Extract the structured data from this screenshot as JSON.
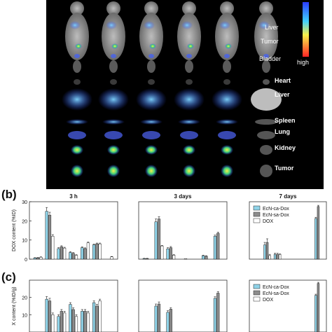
{
  "panel_labels": {
    "b": "(b)",
    "c": "(c)"
  },
  "imaging": {
    "labels": [
      "Liver",
      "Tumor",
      "Bladder"
    ],
    "colorbar": {
      "high": "high",
      "top_color": "#3344ff",
      "bottom_color": "#ff2020"
    },
    "organ_labels": [
      "Heart",
      "Liver",
      "Spleen",
      "Lung",
      "Kidney",
      "Tumor"
    ],
    "background": "#000000"
  },
  "chart_data": [
    {
      "type": "bar",
      "panel": "b",
      "title": "3 h",
      "ylabel": "DOX content (%ID)",
      "ylim": [
        0,
        30
      ],
      "yticks": [
        0,
        10,
        20,
        30
      ],
      "categories": [
        "1",
        "2",
        "3",
        "4",
        "5",
        "6",
        "7"
      ],
      "series": [
        {
          "name": "EcN-ca-Dox",
          "values": [
            0.6,
            25,
            5.5,
            3.5,
            6,
            7.5,
            0
          ],
          "errors": [
            0.2,
            2,
            0.5,
            0.4,
            0.4,
            0.4,
            0
          ]
        },
        {
          "name": "EcN-sa-Dox",
          "values": [
            0.7,
            23,
            6.5,
            3,
            5.5,
            8,
            0
          ],
          "errors": [
            0.2,
            1.5,
            0.5,
            0.4,
            0.4,
            0.4,
            0
          ]
        },
        {
          "name": "DOX",
          "values": [
            1,
            12,
            5.8,
            2,
            8.5,
            8,
            1.2
          ],
          "errors": [
            0.2,
            0.8,
            0.4,
            0.3,
            0.4,
            0.4,
            0.2
          ]
        }
      ]
    },
    {
      "type": "bar",
      "panel": "b",
      "title": "3 days",
      "ylim": [
        0,
        10
      ],
      "categories": [
        "1",
        "2",
        "3",
        "4",
        "5",
        "6",
        "7"
      ],
      "series": [
        {
          "name": "EcN-ca-Dox",
          "values": [
            0.1,
            6.5,
            1.8,
            0,
            0,
            0.6,
            4
          ],
          "errors": [
            0.05,
            0.5,
            0.2,
            0,
            0,
            0.1,
            0.2
          ]
        },
        {
          "name": "EcN-sa-Dox",
          "values": [
            0.1,
            7,
            2,
            0,
            0,
            0.5,
            4.5
          ],
          "errors": [
            0.05,
            0.4,
            0.2,
            0,
            0,
            0.1,
            0.2
          ]
        },
        {
          "name": "DOX",
          "values": [
            0,
            2.3,
            0.7,
            0.1,
            0,
            0,
            0
          ],
          "errors": [
            0,
            0.1,
            0.1,
            0,
            0,
            0,
            0
          ]
        }
      ]
    },
    {
      "type": "bar",
      "panel": "b",
      "title": "7 days",
      "ylim": [
        0,
        2.4
      ],
      "categories": [
        "1",
        "2",
        "3",
        "4",
        "5",
        "6",
        "7"
      ],
      "legend": "top-right",
      "series": [
        {
          "name": "EcN-ca-Dox",
          "values": [
            0,
            0.6,
            0.2,
            0,
            0,
            0,
            1.7
          ],
          "errors": [
            0,
            0.1,
            0.05,
            0,
            0,
            0,
            0.05
          ]
        },
        {
          "name": "EcN-sa-Dox",
          "values": [
            0,
            0.7,
            0.2,
            0,
            0,
            0,
            2.2
          ],
          "errors": [
            0,
            0.15,
            0.05,
            0,
            0,
            0,
            0.05
          ]
        },
        {
          "name": "DOX",
          "values": [
            0,
            0.15,
            0.2,
            0,
            0,
            0,
            0
          ],
          "errors": [
            0,
            0.05,
            0.02,
            0,
            0,
            0,
            0
          ]
        }
      ]
    },
    {
      "type": "bar",
      "panel": "c",
      "ylabel": "X content (%ID/g)",
      "ylim": [
        0,
        30
      ],
      "yticks": [
        10,
        20
      ],
      "categories": [
        "1",
        "2",
        "3",
        "4",
        "5",
        "6",
        "7"
      ],
      "series": [
        {
          "name": "EcN-ca-Dox",
          "values": [
            0,
            19,
            9,
            16,
            12,
            17,
            0
          ],
          "errors": [
            0,
            1.5,
            1,
            1,
            1,
            1,
            0
          ]
        },
        {
          "name": "EcN-sa-Dox",
          "values": [
            0,
            18,
            12,
            13,
            12,
            15,
            0
          ],
          "errors": [
            0,
            1.5,
            1,
            1,
            1,
            1,
            0
          ]
        },
        {
          "name": "DOX",
          "values": [
            0,
            10,
            11,
            9,
            11,
            18,
            0
          ],
          "errors": [
            0,
            1,
            1,
            1,
            1,
            1,
            0
          ]
        }
      ]
    },
    {
      "type": "bar",
      "panel": "c",
      "ylim": [
        0,
        10
      ],
      "categories": [
        "1",
        "2",
        "3",
        "4",
        "5",
        "6",
        "7"
      ],
      "series": [
        {
          "name": "EcN-ca-Dox",
          "values": [
            0,
            5,
            3.8,
            0,
            0,
            0,
            6.5
          ],
          "errors": [
            0,
            0.4,
            0.3,
            0,
            0,
            0,
            0.3
          ]
        },
        {
          "name": "EcN-sa-Dox",
          "values": [
            0,
            5.4,
            4.4,
            0,
            0,
            0,
            7.5
          ],
          "errors": [
            0,
            0.4,
            0.3,
            0,
            0,
            0,
            0.3
          ]
        },
        {
          "name": "DOX",
          "values": [
            0,
            0,
            0,
            0,
            0,
            0,
            0
          ],
          "errors": [
            0,
            0,
            0,
            0,
            0,
            0,
            0
          ]
        }
      ]
    },
    {
      "type": "bar",
      "panel": "c",
      "ylim": [
        0,
        2.4
      ],
      "categories": [
        "1",
        "2",
        "3",
        "4",
        "5",
        "6",
        "7"
      ],
      "legend": "top-right",
      "series": [
        {
          "name": "EcN-ca-Dox",
          "values": [
            0,
            0,
            0,
            0,
            0,
            0,
            1.7
          ],
          "errors": [
            0,
            0,
            0,
            0,
            0,
            0,
            0.05
          ]
        },
        {
          "name": "EcN-sa-Dox",
          "values": [
            0,
            0,
            0,
            0,
            0,
            0,
            2.25
          ],
          "errors": [
            0,
            0,
            0,
            0,
            0,
            0,
            0.05
          ]
        },
        {
          "name": "DOX",
          "values": [
            0,
            0,
            0,
            0,
            0,
            0,
            0
          ],
          "errors": [
            0,
            0,
            0,
            0,
            0,
            0,
            0
          ]
        }
      ]
    }
  ],
  "colors": {
    "EcN-ca-Dox": "#8fd3e8",
    "EcN-sa-Dox": "#8c8c8c",
    "DOX": "#ffffff"
  }
}
